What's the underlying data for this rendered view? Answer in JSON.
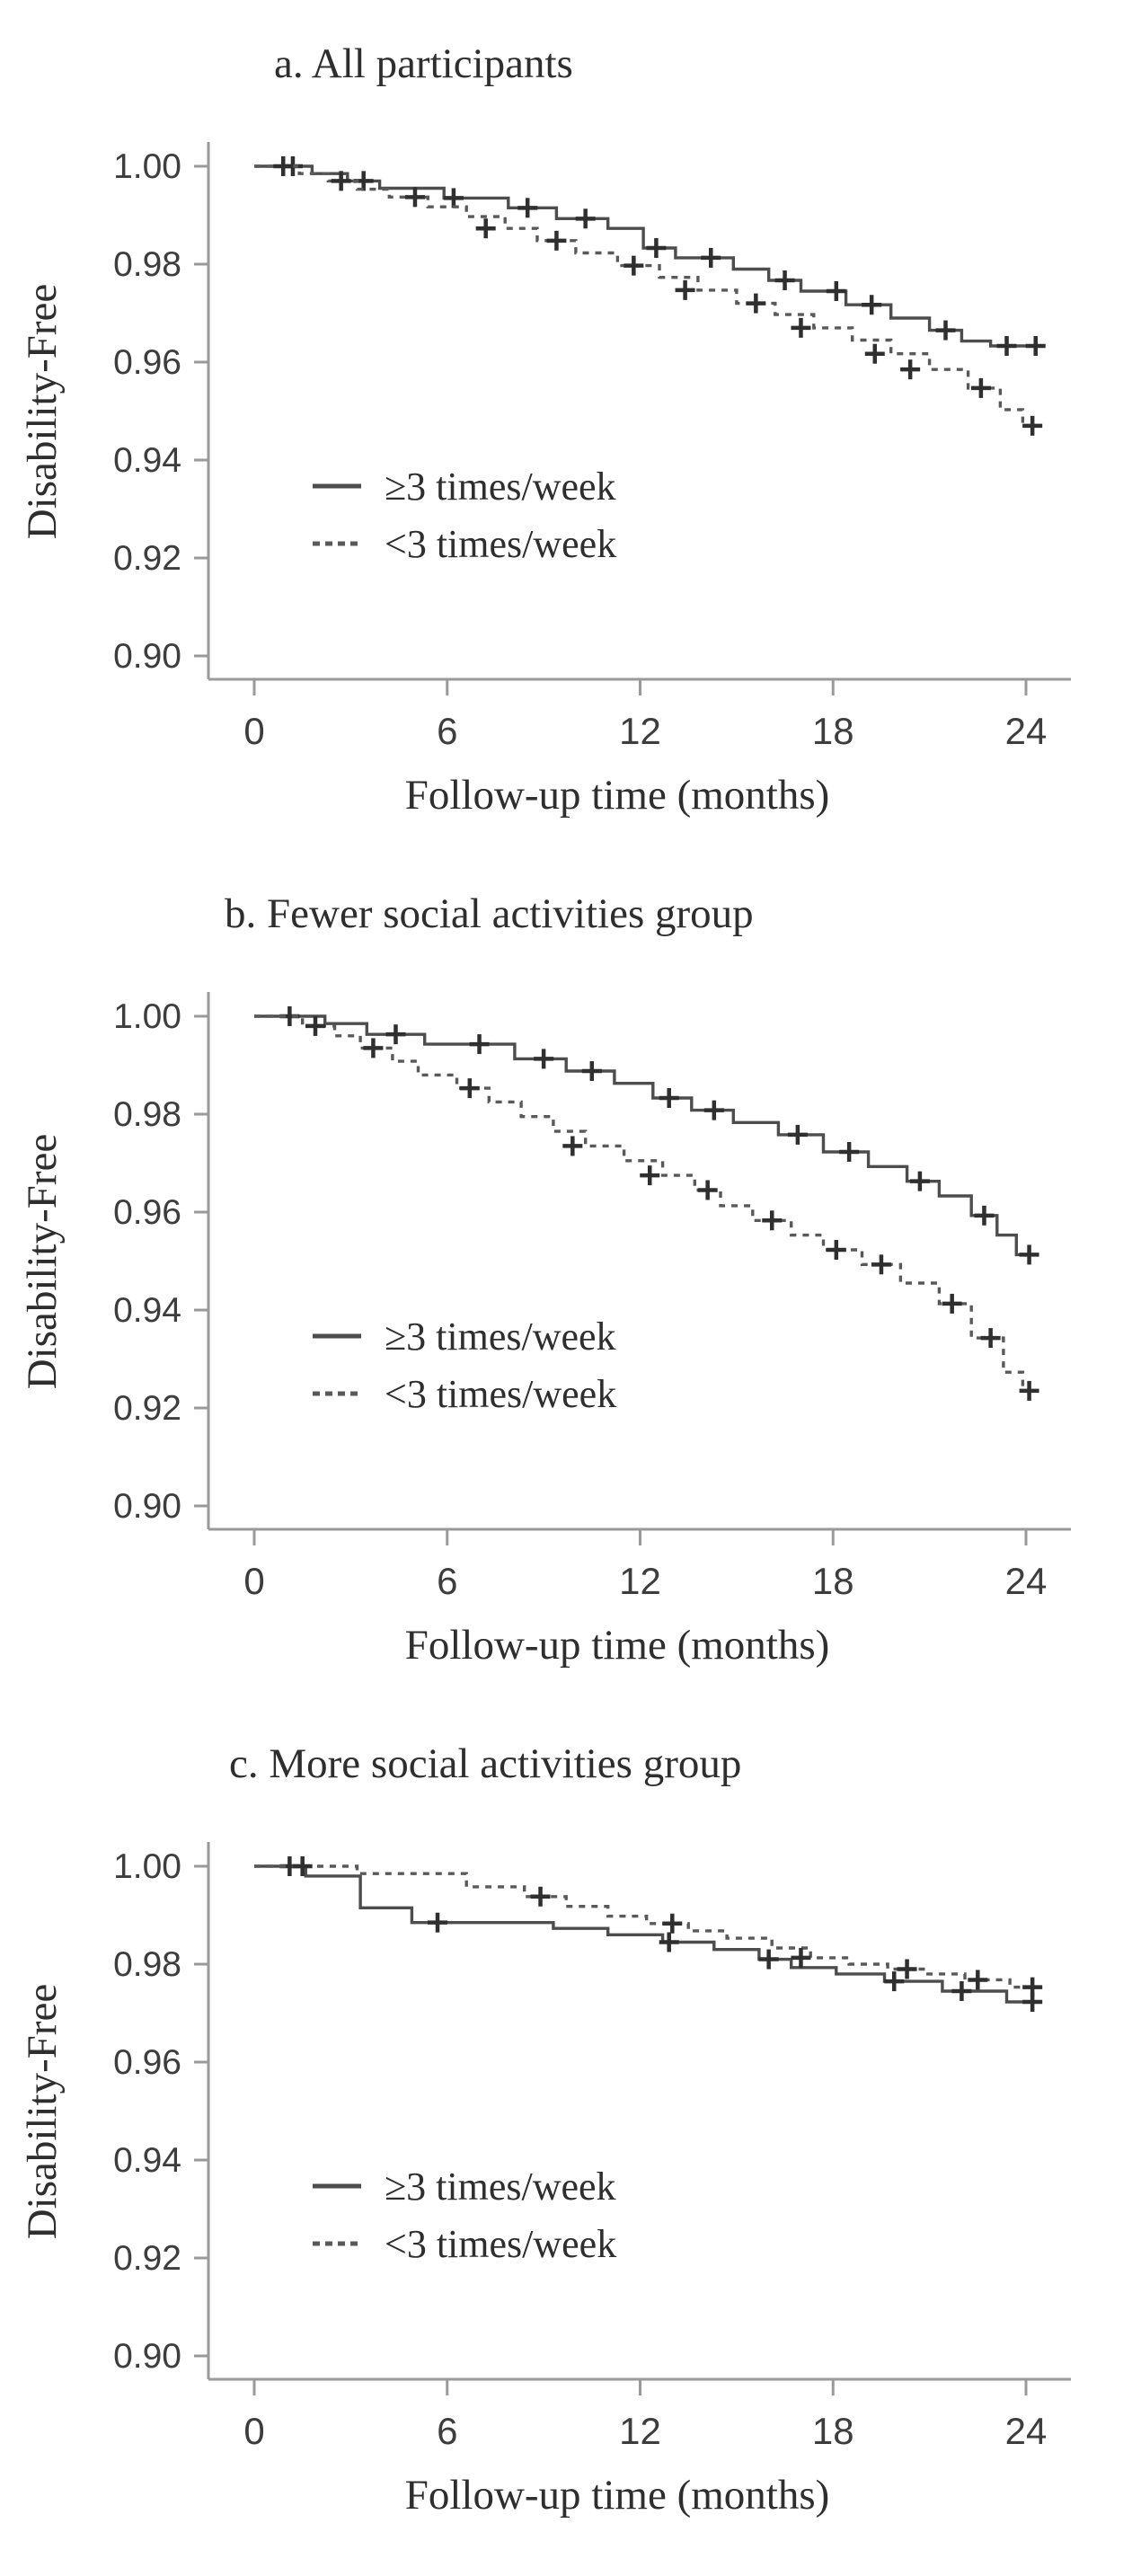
{
  "figure": {
    "ylabel": "Disability-Free",
    "xlabel": "Follow-up time (months)",
    "colors": {
      "curve_solid": "#4d4d4d",
      "curve_dashed": "#595959",
      "axis": "#9a9a9a",
      "censor": "#2f2f2f",
      "text": "#2e2e2e"
    },
    "legend": [
      {
        "style": "solid",
        "label": "≥3 times/week"
      },
      {
        "style": "dashed",
        "label": "<3 times/week"
      }
    ]
  },
  "chart_data": [
    {
      "type": "line",
      "subtype": "kaplan-meier-step",
      "title": "a. All participants",
      "xlabel": "Follow-up time (months)",
      "ylabel": "Disability-Free",
      "xlim": [
        0,
        24
      ],
      "ylim": [
        0.9,
        1.005
      ],
      "x_tick_values": [
        0,
        6,
        12,
        18,
        24
      ],
      "x_tick_labels": [
        "0",
        "6",
        "12",
        "18",
        "24"
      ],
      "y_tick_values": [
        1.0,
        0.98,
        0.96,
        0.94,
        0.92,
        0.9
      ],
      "y_tick_labels": [
        "1.00",
        "0.98",
        "0.96",
        "0.94",
        "0.92",
        "0.90"
      ],
      "grid": false,
      "legend_position": "inside-left-middle",
      "series": [
        {
          "name": "≥3 times/week",
          "style": "solid",
          "points": [
            [
              0,
              1.0
            ],
            [
              1.8,
              0.9985
            ],
            [
              2.9,
              0.997
            ],
            [
              3.9,
              0.9955
            ],
            [
              5.9,
              0.9935
            ],
            [
              7.9,
              0.9915
            ],
            [
              9.4,
              0.9893
            ],
            [
              11.0,
              0.9873
            ],
            [
              12.1,
              0.9833
            ],
            [
              13.1,
              0.9813
            ],
            [
              14.9,
              0.979
            ],
            [
              16.0,
              0.9767
            ],
            [
              17.0,
              0.9745
            ],
            [
              18.4,
              0.9717
            ],
            [
              19.8,
              0.969
            ],
            [
              21.0,
              0.9665
            ],
            [
              22.0,
              0.9643
            ],
            [
              22.9,
              0.9633
            ],
            [
              24.3,
              0.9633
            ]
          ],
          "censor_marks": [
            [
              1.2,
              1.0
            ],
            [
              3.4,
              0.997
            ],
            [
              6.2,
              0.9935
            ],
            [
              8.5,
              0.9915
            ],
            [
              10.3,
              0.9893
            ],
            [
              12.5,
              0.9833
            ],
            [
              14.2,
              0.9813
            ],
            [
              16.5,
              0.9767
            ],
            [
              18.1,
              0.9745
            ],
            [
              19.2,
              0.9717
            ],
            [
              21.5,
              0.9665
            ],
            [
              23.4,
              0.9633
            ],
            [
              24.3,
              0.9633
            ]
          ]
        },
        {
          "name": "<3 times/week",
          "style": "dashed",
          "points": [
            [
              0,
              1.0
            ],
            [
              1.4,
              0.9985
            ],
            [
              2.3,
              0.997
            ],
            [
              3.2,
              0.9953
            ],
            [
              4.2,
              0.9937
            ],
            [
              5.4,
              0.9917
            ],
            [
              6.6,
              0.9897
            ],
            [
              7.8,
              0.9873
            ],
            [
              8.8,
              0.9848
            ],
            [
              10.0,
              0.9823
            ],
            [
              11.3,
              0.9797
            ],
            [
              12.6,
              0.9773
            ],
            [
              13.8,
              0.9747
            ],
            [
              15.0,
              0.972
            ],
            [
              16.2,
              0.9697
            ],
            [
              17.4,
              0.967
            ],
            [
              18.6,
              0.9645
            ],
            [
              19.8,
              0.9617
            ],
            [
              21.0,
              0.9585
            ],
            [
              22.2,
              0.9547
            ],
            [
              23.2,
              0.9503
            ],
            [
              23.9,
              0.947
            ],
            [
              24.3,
              0.947
            ]
          ],
          "censor_marks": [
            [
              0.9,
              1.0
            ],
            [
              2.7,
              0.997
            ],
            [
              5.0,
              0.9937
            ],
            [
              7.2,
              0.9873
            ],
            [
              9.4,
              0.9848
            ],
            [
              11.8,
              0.9797
            ],
            [
              13.4,
              0.9747
            ],
            [
              15.6,
              0.972
            ],
            [
              17.0,
              0.967
            ],
            [
              19.3,
              0.9617
            ],
            [
              20.4,
              0.9585
            ],
            [
              22.6,
              0.9547
            ],
            [
              24.2,
              0.947
            ]
          ]
        }
      ]
    },
    {
      "type": "line",
      "subtype": "kaplan-meier-step",
      "title": "b. Fewer social activities group",
      "xlabel": "Follow-up time (months)",
      "ylabel": "Disability-Free",
      "xlim": [
        0,
        24
      ],
      "ylim": [
        0.9,
        1.005
      ],
      "x_tick_values": [
        0,
        6,
        12,
        18,
        24
      ],
      "x_tick_labels": [
        "0",
        "6",
        "12",
        "18",
        "24"
      ],
      "y_tick_values": [
        1.0,
        0.98,
        0.96,
        0.94,
        0.92,
        0.9
      ],
      "y_tick_labels": [
        "1.00",
        "0.98",
        "0.96",
        "0.94",
        "0.92",
        "0.90"
      ],
      "grid": false,
      "legend_position": "inside-left-middle",
      "series": [
        {
          "name": "≥3 times/week",
          "style": "solid",
          "points": [
            [
              0,
              1.0
            ],
            [
              2.2,
              0.9985
            ],
            [
              3.5,
              0.9963
            ],
            [
              5.3,
              0.9943
            ],
            [
              8.1,
              0.9913
            ],
            [
              9.7,
              0.9888
            ],
            [
              11.2,
              0.9863
            ],
            [
              12.4,
              0.9833
            ],
            [
              13.6,
              0.9808
            ],
            [
              14.9,
              0.9783
            ],
            [
              16.3,
              0.9758
            ],
            [
              17.7,
              0.9723
            ],
            [
              19.1,
              0.9693
            ],
            [
              20.3,
              0.9663
            ],
            [
              21.3,
              0.9633
            ],
            [
              22.3,
              0.9593
            ],
            [
              23.1,
              0.9553
            ],
            [
              23.7,
              0.9513
            ],
            [
              24.3,
              0.9513
            ]
          ],
          "censor_marks": [
            [
              1.1,
              1.0
            ],
            [
              4.4,
              0.9963
            ],
            [
              7.0,
              0.9943
            ],
            [
              9.0,
              0.9913
            ],
            [
              10.5,
              0.9888
            ],
            [
              12.9,
              0.9833
            ],
            [
              14.3,
              0.9808
            ],
            [
              16.9,
              0.9758
            ],
            [
              18.5,
              0.9723
            ],
            [
              20.7,
              0.9663
            ],
            [
              22.7,
              0.9593
            ],
            [
              24.1,
              0.9513
            ]
          ]
        },
        {
          "name": "<3 times/week",
          "style": "dashed",
          "points": [
            [
              0,
              1.0
            ],
            [
              1.5,
              0.998
            ],
            [
              2.5,
              0.996
            ],
            [
              3.3,
              0.9935
            ],
            [
              4.3,
              0.9908
            ],
            [
              5.1,
              0.988
            ],
            [
              6.3,
              0.9853
            ],
            [
              7.3,
              0.9825
            ],
            [
              8.3,
              0.9795
            ],
            [
              9.3,
              0.9765
            ],
            [
              10.3,
              0.9735
            ],
            [
              11.5,
              0.9705
            ],
            [
              12.7,
              0.9675
            ],
            [
              13.7,
              0.9645
            ],
            [
              14.5,
              0.9613
            ],
            [
              15.5,
              0.9583
            ],
            [
              16.7,
              0.9553
            ],
            [
              17.7,
              0.9523
            ],
            [
              18.9,
              0.9493
            ],
            [
              20.1,
              0.9455
            ],
            [
              21.3,
              0.9413
            ],
            [
              22.3,
              0.9343
            ],
            [
              23.3,
              0.9273
            ],
            [
              23.9,
              0.9235
            ],
            [
              24.3,
              0.9235
            ]
          ],
          "censor_marks": [
            [
              1.9,
              0.998
            ],
            [
              3.7,
              0.9935
            ],
            [
              6.7,
              0.9853
            ],
            [
              9.9,
              0.9735
            ],
            [
              12.3,
              0.9675
            ],
            [
              14.1,
              0.9645
            ],
            [
              16.1,
              0.9583
            ],
            [
              18.1,
              0.9523
            ],
            [
              19.5,
              0.9493
            ],
            [
              21.7,
              0.9413
            ],
            [
              22.9,
              0.9343
            ],
            [
              24.1,
              0.9235
            ]
          ]
        }
      ]
    },
    {
      "type": "line",
      "subtype": "kaplan-meier-step",
      "title": "c. More social activities group",
      "xlabel": "Follow-up time (months)",
      "ylabel": "Disability-Free",
      "xlim": [
        0,
        24
      ],
      "ylim": [
        0.9,
        1.005
      ],
      "x_tick_values": [
        0,
        6,
        12,
        18,
        24
      ],
      "x_tick_labels": [
        "0",
        "6",
        "12",
        "18",
        "24"
      ],
      "y_tick_values": [
        1.0,
        0.98,
        0.96,
        0.94,
        0.92,
        0.9
      ],
      "y_tick_labels": [
        "1.00",
        "0.98",
        "0.96",
        "0.94",
        "0.92",
        "0.90"
      ],
      "grid": false,
      "legend_position": "inside-left-middle",
      "series": [
        {
          "name": "≥3 times/week",
          "style": "solid",
          "points": [
            [
              0,
              1.0
            ],
            [
              1.6,
              0.998
            ],
            [
              3.3,
              0.9915
            ],
            [
              4.9,
              0.9885
            ],
            [
              9.3,
              0.9873
            ],
            [
              11.0,
              0.986
            ],
            [
              12.7,
              0.9845
            ],
            [
              14.3,
              0.983
            ],
            [
              15.7,
              0.981
            ],
            [
              16.7,
              0.9793
            ],
            [
              18.1,
              0.978
            ],
            [
              19.6,
              0.9765
            ],
            [
              21.4,
              0.9745
            ],
            [
              23.4,
              0.9723
            ],
            [
              24.3,
              0.9723
            ]
          ],
          "censor_marks": [
            [
              1.1,
              1.0
            ],
            [
              5.7,
              0.9885
            ],
            [
              12.9,
              0.9845
            ],
            [
              16.0,
              0.981
            ],
            [
              19.9,
              0.9765
            ],
            [
              22.0,
              0.9745
            ],
            [
              24.2,
              0.9723
            ]
          ]
        },
        {
          "name": "<3 times/week",
          "style": "dashed",
          "points": [
            [
              0,
              1.0
            ],
            [
              3.2,
              0.9985
            ],
            [
              6.6,
              0.9958
            ],
            [
              8.4,
              0.9938
            ],
            [
              9.7,
              0.9918
            ],
            [
              11.0,
              0.9898
            ],
            [
              12.2,
              0.9883
            ],
            [
              13.5,
              0.9868
            ],
            [
              14.7,
              0.9853
            ],
            [
              16.1,
              0.9833
            ],
            [
              17.3,
              0.9813
            ],
            [
              18.5,
              0.98
            ],
            [
              19.7,
              0.979
            ],
            [
              20.9,
              0.978
            ],
            [
              22.1,
              0.9768
            ],
            [
              23.5,
              0.9753
            ],
            [
              24.3,
              0.9753
            ]
          ],
          "censor_marks": [
            [
              1.5,
              1.0
            ],
            [
              8.9,
              0.9938
            ],
            [
              13.0,
              0.9883
            ],
            [
              17.0,
              0.9813
            ],
            [
              20.3,
              0.979
            ],
            [
              22.5,
              0.9768
            ],
            [
              24.2,
              0.9753
            ]
          ]
        }
      ]
    }
  ]
}
